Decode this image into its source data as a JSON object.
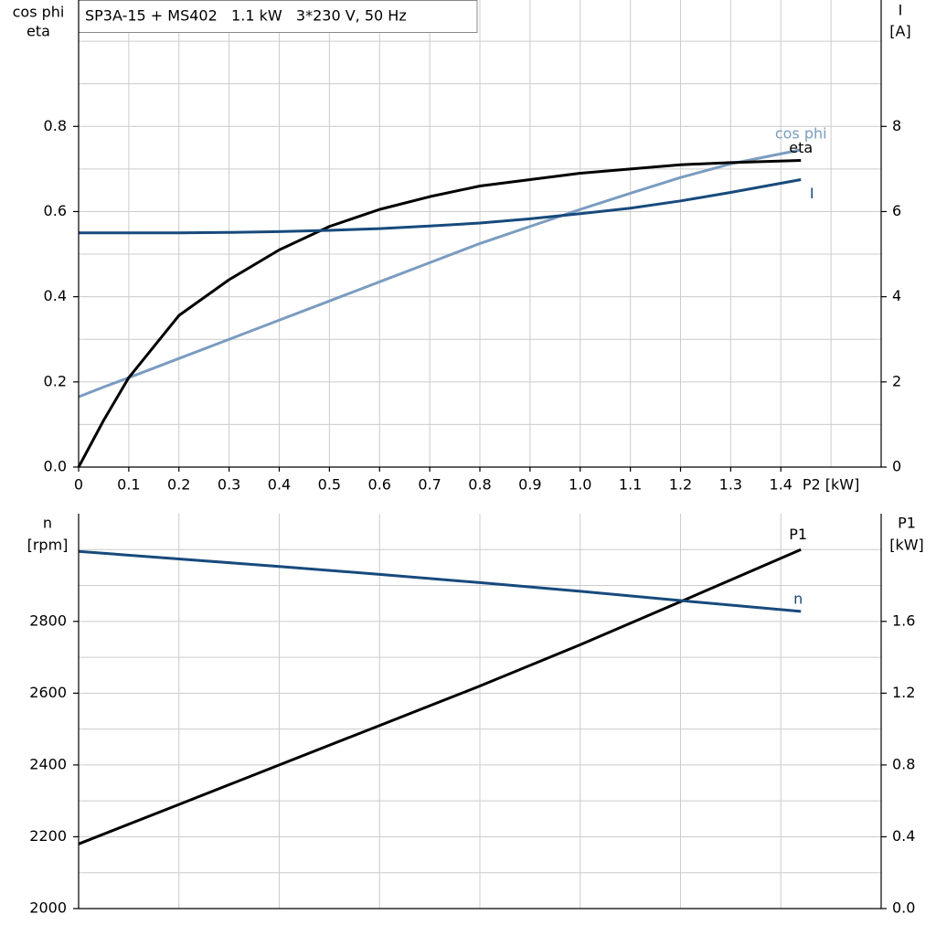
{
  "chart_data": [
    {
      "type": "line",
      "title": "SP3A-15 + MS402   1.1 kW   3*230 V, 50 Hz",
      "ylabel": [
        "cos phi",
        "eta"
      ],
      "y2label": [
        "I",
        "[A]"
      ],
      "xlabel": "P2 [kW]",
      "x": [
        0,
        0.05,
        0.1,
        0.2,
        0.3,
        0.4,
        0.5,
        0.6,
        0.7,
        0.8,
        0.9,
        1.0,
        1.1,
        1.2,
        1.3,
        1.44
      ],
      "series": [
        {
          "name": "cos phi",
          "color": "#7a9cc0",
          "values": [
            0.165,
            0.188,
            0.21,
            0.255,
            0.3,
            0.345,
            0.39,
            0.435,
            0.48,
            0.525,
            0.565,
            0.605,
            0.643,
            0.68,
            0.712,
            0.745
          ]
        },
        {
          "name": "eta",
          "color": "#000000",
          "values": [
            0,
            0.11,
            0.21,
            0.356,
            0.44,
            0.51,
            0.565,
            0.605,
            0.635,
            0.66,
            0.675,
            0.69,
            0.7,
            0.71,
            0.715,
            0.72
          ]
        },
        {
          "name": "I",
          "color": "#174a7c",
          "axis": "y2",
          "values": [
            5.5,
            5.5,
            5.5,
            5.5,
            5.51,
            5.53,
            5.56,
            5.6,
            5.66,
            5.73,
            5.83,
            5.95,
            6.08,
            6.25,
            6.45,
            6.75
          ]
        }
      ],
      "xlim": [
        0,
        1.6
      ],
      "xticks": [
        0,
        0.1,
        0.2,
        0.3,
        0.4,
        0.5,
        0.6,
        0.7,
        0.8,
        0.9,
        {
          "value": 1.0,
          "label": "1.0"
        },
        1.1,
        1.2,
        1.3,
        1.4
      ],
      "x_minor_ticks": [
        1.5
      ],
      "ylim": [
        0,
        1.1
      ],
      "yticks": [
        {
          "value": 0,
          "label": "0.0"
        },
        0.2,
        0.4,
        0.6,
        0.8
      ],
      "y_minor_ticks": [
        0.1,
        0.3,
        0.5,
        0.7,
        0.9,
        1.0
      ],
      "y2lim": [
        0,
        11
      ],
      "y2ticks": [
        0,
        2,
        4,
        6,
        8
      ],
      "grid": true
    },
    {
      "type": "line",
      "ylabel": [
        "n",
        "[rpm]"
      ],
      "y2label": [
        "P1",
        "[kW]"
      ],
      "x": [
        0,
        0.2,
        0.4,
        0.6,
        0.8,
        1.0,
        1.2,
        1.44
      ],
      "series": [
        {
          "name": "P1",
          "color": "#000000",
          "axis": "y2",
          "values": [
            0.36,
            0.58,
            0.8,
            1.02,
            1.24,
            1.47,
            1.71,
            2.0
          ]
        },
        {
          "name": "n",
          "color": "#174a7c",
          "values": [
            2995,
            2974,
            2953,
            2931,
            2908,
            2884,
            2858,
            2828
          ]
        }
      ],
      "xlim": [
        0,
        1.6
      ],
      "x_minor_ticks": [
        0.2,
        0.4,
        0.6,
        0.8,
        1.0,
        1.2,
        1.4
      ],
      "ylim": [
        2000,
        3100
      ],
      "yticks": [
        2000,
        2200,
        2400,
        2600,
        2800
      ],
      "y_minor_ticks": [
        2100,
        2300,
        2500,
        2700,
        2900,
        3000
      ],
      "y2lim": [
        0,
        2.2
      ],
      "y2ticks": [
        {
          "value": 0,
          "label": "0.0"
        },
        0.4,
        0.8,
        1.2,
        1.6
      ],
      "grid": true
    }
  ]
}
